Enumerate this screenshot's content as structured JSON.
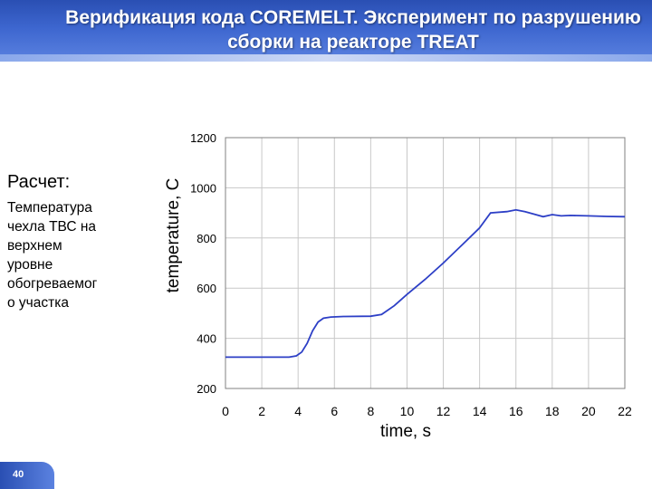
{
  "slide": {
    "title": "Верификация кода COREMELT. Эксперимент по разрушению сборки на реакторе  TREAT",
    "side_heading": "Расчет",
    "side_heading_suffix": ":",
    "side_body": "Температура\nчехла ТВС  на\nверхнем\nуровне\nобогреваемог\nо участка",
    "page_number": "40"
  },
  "colors": {
    "accent": "#2a4fb3",
    "series": "#2d3fc6",
    "grid": "#c8c8c8"
  },
  "chart_data": {
    "type": "line",
    "title": "",
    "xlabel": "time, s",
    "ylabel": "temperature, C",
    "xlim": [
      0,
      22
    ],
    "ylim": [
      200,
      1200
    ],
    "xticks": [
      0,
      2,
      4,
      6,
      8,
      10,
      12,
      14,
      16,
      18,
      20,
      22
    ],
    "yticks": [
      200,
      400,
      600,
      800,
      1000,
      1200
    ],
    "grid": true,
    "legend": "none",
    "series": [
      {
        "x": [
          0,
          3.5,
          3.9,
          4.2,
          4.5,
          4.8,
          5.1,
          5.4,
          5.8,
          6.5,
          8,
          8.6,
          9.3,
          10,
          11,
          12,
          13,
          14,
          14.6,
          15.5,
          16,
          16.5,
          17,
          17.5,
          18,
          18.5,
          19,
          20,
          21,
          22
        ],
        "y": [
          325,
          325,
          330,
          345,
          380,
          430,
          465,
          480,
          485,
          487,
          488,
          495,
          530,
          575,
          635,
          700,
          770,
          840,
          900,
          905,
          912,
          905,
          895,
          885,
          893,
          888,
          890,
          888,
          886,
          885
        ]
      }
    ]
  }
}
